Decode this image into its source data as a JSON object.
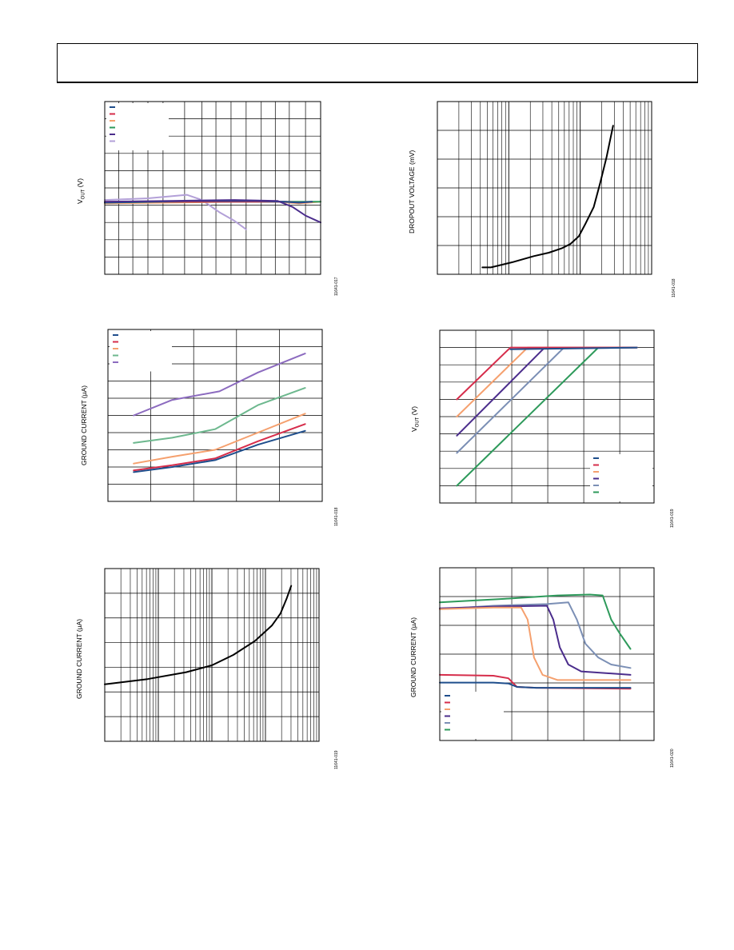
{
  "header": {
    "text": ""
  },
  "charts": [
    {
      "id": "fig17",
      "ylabel_main": "V",
      "ylabel_sub": "OUT",
      "ylabel_unit": " (V)",
      "fig_id": "11641-017",
      "grid": {
        "vlines": [
          0.065,
          0.13,
          0.2,
          0.27,
          0.37,
          0.45,
          0.515,
          0.585,
          0.655,
          0.725,
          0.79,
          0.855,
          0.93
        ],
        "hlines": 10
      },
      "legend": {
        "corner": "top-left",
        "colors": [
          "#1f4e8c",
          "#d62d4b",
          "#f5a06e",
          "#2e9a5b",
          "#4b2d8c",
          "#b3a0d8"
        ]
      },
      "series": [
        {
          "color": "#b3a0d8",
          "points": [
            [
              0,
              0.57
            ],
            [
              0.2,
              0.56
            ],
            [
              0.38,
              0.54
            ],
            [
              0.45,
              0.57
            ],
            [
              0.53,
              0.64
            ],
            [
              0.6,
              0.69
            ],
            [
              0.655,
              0.74
            ]
          ]
        },
        {
          "color": "#f5a06e",
          "points": [
            [
              0,
              0.59
            ],
            [
              0.3,
              0.585
            ],
            [
              0.6,
              0.58
            ],
            [
              0.8,
              0.58
            ],
            [
              0.9,
              0.59
            ],
            [
              1,
              0.58
            ]
          ]
        },
        {
          "color": "#2e9a5b",
          "points": [
            [
              0,
              0.585
            ],
            [
              0.3,
              0.58
            ],
            [
              0.6,
              0.58
            ],
            [
              0.8,
              0.58
            ],
            [
              1,
              0.58
            ]
          ]
        },
        {
          "color": "#d62d4b",
          "points": [
            [
              0,
              0.58
            ],
            [
              0.3,
              0.58
            ],
            [
              0.6,
              0.58
            ],
            [
              0.84,
              0.58
            ],
            [
              0.9,
              0.585
            ],
            [
              0.96,
              0.58
            ]
          ]
        },
        {
          "color": "#1f4e8c",
          "points": [
            [
              0,
              0.585
            ],
            [
              0.4,
              0.575
            ],
            [
              0.7,
              0.575
            ],
            [
              0.83,
              0.58
            ],
            [
              0.9,
              0.585
            ],
            [
              0.96,
              0.58
            ]
          ]
        },
        {
          "color": "#4b2d8c",
          "points": [
            [
              0,
              0.58
            ],
            [
              0.3,
              0.575
            ],
            [
              0.6,
              0.57
            ],
            [
              0.8,
              0.575
            ],
            [
              0.87,
              0.61
            ],
            [
              0.93,
              0.66
            ],
            [
              1,
              0.7
            ]
          ]
        }
      ]
    },
    {
      "id": "fig18",
      "ylabel_main": "DROPOUT VOLTAGE (mV)",
      "fig_id": "11641-018",
      "grid": {
        "log_x": true,
        "decades": 3,
        "hlines": 6
      },
      "series": [
        {
          "color": "#000000",
          "points": [
            [
              0.21,
              0.96
            ],
            [
              0.25,
              0.96
            ],
            [
              0.35,
              0.93
            ],
            [
              0.45,
              0.895
            ],
            [
              0.52,
              0.875
            ],
            [
              0.58,
              0.85
            ],
            [
              0.62,
              0.825
            ],
            [
              0.66,
              0.78
            ],
            [
              0.69,
              0.71
            ],
            [
              0.73,
              0.61
            ],
            [
              0.76,
              0.47
            ],
            [
              0.79,
              0.32
            ],
            [
              0.82,
              0.14
            ]
          ]
        }
      ]
    },
    {
      "id": "fig19a",
      "ylabel_main": "GROUND CURRENT (µA)",
      "fig_id": "11641-018",
      "grid": {
        "vlines": [
          0.2,
          0.4,
          0.6,
          0.8
        ],
        "hlines": 10
      },
      "legend": {
        "corner": "top-left",
        "colors": [
          "#1f4e8c",
          "#d62d4b",
          "#f5a06e",
          "#6db88e",
          "#8c6bbf"
        ]
      },
      "series": [
        {
          "color": "#8c6bbf",
          "points": [
            [
              0.12,
              0.5
            ],
            [
              0.3,
              0.41
            ],
            [
              0.52,
              0.36
            ],
            [
              0.7,
              0.25
            ],
            [
              0.92,
              0.14
            ]
          ]
        },
        {
          "color": "#6db88e",
          "points": [
            [
              0.12,
              0.66
            ],
            [
              0.3,
              0.63
            ],
            [
              0.5,
              0.58
            ],
            [
              0.7,
              0.44
            ],
            [
              0.92,
              0.34
            ]
          ]
        },
        {
          "color": "#f5a06e",
          "points": [
            [
              0.12,
              0.78
            ],
            [
              0.3,
              0.74
            ],
            [
              0.5,
              0.7
            ],
            [
              0.7,
              0.6
            ],
            [
              0.92,
              0.49
            ]
          ]
        },
        {
          "color": "#d62d4b",
          "points": [
            [
              0.12,
              0.82
            ],
            [
              0.3,
              0.79
            ],
            [
              0.5,
              0.75
            ],
            [
              0.7,
              0.65
            ],
            [
              0.92,
              0.55
            ]
          ]
        },
        {
          "color": "#1f4e8c",
          "points": [
            [
              0.12,
              0.83
            ],
            [
              0.3,
              0.8
            ],
            [
              0.5,
              0.76
            ],
            [
              0.7,
              0.67
            ],
            [
              0.92,
              0.59
            ]
          ]
        }
      ]
    },
    {
      "id": "fig19b",
      "ylabel_main": "V",
      "ylabel_sub": "OUT",
      "ylabel_unit": " (V)",
      "fig_id": "11641-019",
      "grid": {
        "vlines": [
          0.168,
          0.336,
          0.504,
          0.672,
          0.84
        ],
        "hlines": 10
      },
      "legend": {
        "corner": "bottom-right",
        "colors": [
          "#1f4e8c",
          "#d62d4b",
          "#f5a06e",
          "#4b2d8c",
          "#7b8fb5",
          "#2e9a5b"
        ]
      },
      "series": [
        {
          "color": "#2e9a5b",
          "points": [
            [
              0.08,
              0.9
            ],
            [
              0.74,
              0.1
            ],
            [
              0.92,
              0.1
            ]
          ]
        },
        {
          "color": "#7b8fb5",
          "points": [
            [
              0.08,
              0.71
            ],
            [
              0.58,
              0.1
            ],
            [
              0.92,
              0.1
            ]
          ]
        },
        {
          "color": "#4b2d8c",
          "points": [
            [
              0.08,
              0.61
            ],
            [
              0.49,
              0.1
            ],
            [
              0.92,
              0.1
            ]
          ]
        },
        {
          "color": "#f5a06e",
          "points": [
            [
              0.08,
              0.5
            ],
            [
              0.41,
              0.1
            ],
            [
              0.92,
              0.1
            ]
          ]
        },
        {
          "color": "#d62d4b",
          "points": [
            [
              0.08,
              0.4
            ],
            [
              0.33,
              0.1
            ],
            [
              0.92,
              0.1
            ]
          ]
        },
        {
          "color": "#1f4e8c",
          "points": [
            [
              0.33,
              0.11
            ],
            [
              0.92,
              0.1
            ]
          ]
        }
      ]
    },
    {
      "id": "fig20a",
      "ylabel_main": "GROUND CURRENT (µA)",
      "fig_id": "11641-019",
      "grid": {
        "log_x": true,
        "decades": 4,
        "hlines": 7
      },
      "series": [
        {
          "color": "#000000",
          "points": [
            [
              0,
              0.67
            ],
            [
              0.2,
              0.64
            ],
            [
              0.38,
              0.6
            ],
            [
              0.5,
              0.56
            ],
            [
              0.6,
              0.5
            ],
            [
              0.7,
              0.42
            ],
            [
              0.78,
              0.33
            ],
            [
              0.82,
              0.26
            ],
            [
              0.85,
              0.17
            ],
            [
              0.87,
              0.1
            ]
          ]
        }
      ]
    },
    {
      "id": "fig20b",
      "ylabel_main": "GROUND CURRENT (µA)",
      "fig_id": "11641-020",
      "grid": {
        "vlines": [
          0.168,
          0.336,
          0.504,
          0.672,
          0.84
        ],
        "hlines": 6
      },
      "legend": {
        "corner": "bottom-left",
        "colors": [
          "#1f4e8c",
          "#d62d4b",
          "#f5a06e",
          "#4b2d8c",
          "#7b8fb5",
          "#2e9a5b"
        ]
      },
      "series": [
        {
          "color": "#2e9a5b",
          "points": [
            [
              0,
              0.2
            ],
            [
              0.3,
              0.18
            ],
            [
              0.55,
              0.16
            ],
            [
              0.7,
              0.155
            ],
            [
              0.76,
              0.16
            ],
            [
              0.8,
              0.3
            ],
            [
              0.84,
              0.38
            ],
            [
              0.89,
              0.47
            ]
          ]
        },
        {
          "color": "#7b8fb5",
          "points": [
            [
              0,
              0.24
            ],
            [
              0.25,
              0.22
            ],
            [
              0.5,
              0.21
            ],
            [
              0.6,
              0.2
            ],
            [
              0.64,
              0.3
            ],
            [
              0.68,
              0.44
            ],
            [
              0.74,
              0.52
            ],
            [
              0.8,
              0.56
            ],
            [
              0.89,
              0.58
            ]
          ]
        },
        {
          "color": "#4b2d8c",
          "points": [
            [
              0,
              0.235
            ],
            [
              0.25,
              0.225
            ],
            [
              0.5,
              0.22
            ],
            [
              0.53,
              0.3
            ],
            [
              0.56,
              0.46
            ],
            [
              0.6,
              0.56
            ],
            [
              0.66,
              0.6
            ],
            [
              0.89,
              0.62
            ]
          ]
        },
        {
          "color": "#f5a06e",
          "points": [
            [
              0,
              0.24
            ],
            [
              0.25,
              0.23
            ],
            [
              0.38,
              0.23
            ],
            [
              0.41,
              0.3
            ],
            [
              0.44,
              0.52
            ],
            [
              0.48,
              0.62
            ],
            [
              0.55,
              0.65
            ],
            [
              0.89,
              0.65
            ]
          ]
        },
        {
          "color": "#d62d4b",
          "points": [
            [
              0,
              0.62
            ],
            [
              0.25,
              0.625
            ],
            [
              0.32,
              0.64
            ],
            [
              0.36,
              0.69
            ],
            [
              0.45,
              0.695
            ],
            [
              0.89,
              0.7
            ]
          ]
        },
        {
          "color": "#1f4e8c",
          "points": [
            [
              0,
              0.665
            ],
            [
              0.25,
              0.665
            ],
            [
              0.32,
              0.67
            ],
            [
              0.36,
              0.69
            ],
            [
              0.45,
              0.695
            ],
            [
              0.89,
              0.695
            ]
          ]
        }
      ]
    }
  ]
}
